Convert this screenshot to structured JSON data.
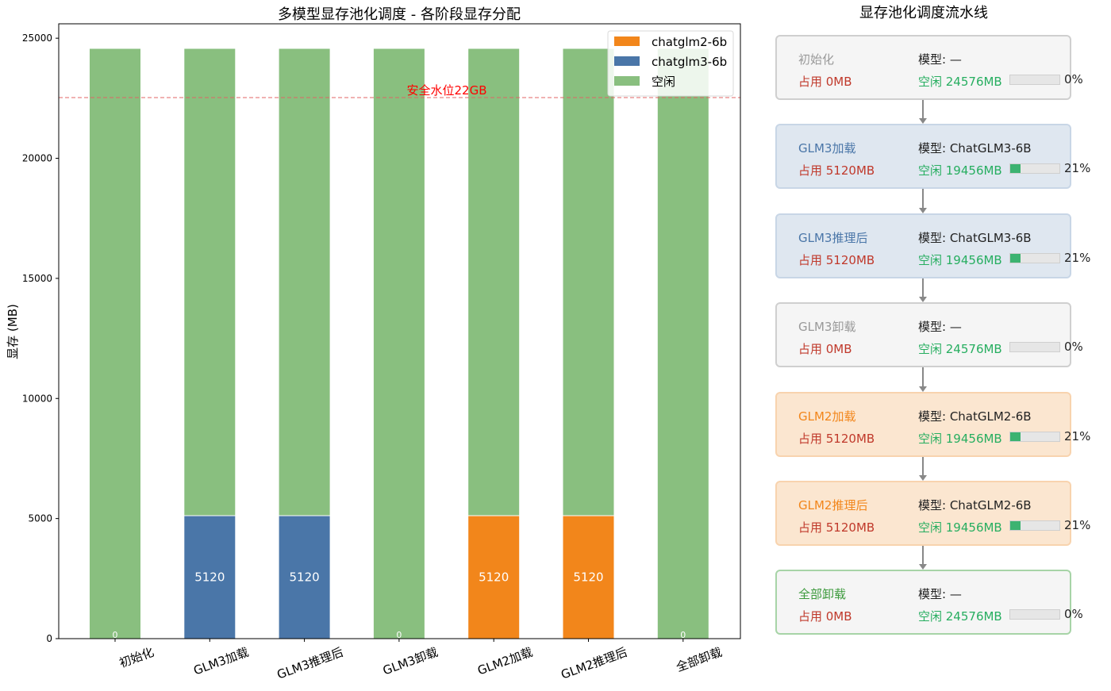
{
  "chart_data": {
    "type": "bar",
    "stacked": true,
    "title": "多模型显存池化调度 - 各阶段显存分配",
    "xlabel": "",
    "ylabel": "显存 (MB)",
    "ylim": [
      0,
      25600
    ],
    "yticks": [
      0,
      5000,
      10000,
      15000,
      20000,
      25000
    ],
    "categories": [
      "初始化",
      "GLM3加载",
      "GLM3推理后",
      "GLM3卸载",
      "GLM2加载",
      "GLM2推理后",
      "全部卸载"
    ],
    "series": [
      {
        "name": "chatglm2-6b",
        "color": "#f2861b",
        "values": [
          0,
          0,
          0,
          0,
          5120,
          5120,
          0
        ]
      },
      {
        "name": "chatglm3-6b",
        "color": "#4a76a8",
        "values": [
          0,
          5120,
          5120,
          0,
          0,
          0,
          0
        ]
      },
      {
        "name": "空闲",
        "color": "#89bf7f",
        "values": [
          24576,
          19456,
          19456,
          24576,
          19456,
          19456,
          24576
        ]
      }
    ],
    "bar_labels": [
      "0",
      "5120",
      "5120",
      "0",
      "5120",
      "5120",
      "0"
    ],
    "reference_line": {
      "value": 22528,
      "label": "安全水位22GB",
      "color": "#e06666"
    },
    "legend": "top-right",
    "grid": false
  },
  "pipeline": {
    "title": "显存池化调度流水线",
    "stages": [
      {
        "name": "初始化",
        "model": "模型: —",
        "used": "占用 0MB",
        "free": "空闲 24576MB",
        "usage_pct": 0,
        "pct_label": "0%",
        "style": "init"
      },
      {
        "name": "GLM3加载",
        "model": "模型: ChatGLM3-6B",
        "used": "占用 5120MB",
        "free": "空闲 19456MB",
        "usage_pct": 21,
        "pct_label": "21%",
        "style": "glm3"
      },
      {
        "name": "GLM3推理后",
        "model": "模型: ChatGLM3-6B",
        "used": "占用 5120MB",
        "free": "空闲 19456MB",
        "usage_pct": 21,
        "pct_label": "21%",
        "style": "glm3"
      },
      {
        "name": "GLM3卸载",
        "model": "模型: —",
        "used": "占用 0MB",
        "free": "空闲 24576MB",
        "usage_pct": 0,
        "pct_label": "0%",
        "style": "gray"
      },
      {
        "name": "GLM2加载",
        "model": "模型: ChatGLM2-6B",
        "used": "占用 5120MB",
        "free": "空闲 19456MB",
        "usage_pct": 21,
        "pct_label": "21%",
        "style": "glm2"
      },
      {
        "name": "GLM2推理后",
        "model": "模型: ChatGLM2-6B",
        "used": "占用 5120MB",
        "free": "空闲 19456MB",
        "usage_pct": 21,
        "pct_label": "21%",
        "style": "glm2"
      },
      {
        "name": "全部卸载",
        "model": "模型: —",
        "used": "占用 0MB",
        "free": "空闲 24576MB",
        "usage_pct": 0,
        "pct_label": "0%",
        "style": "done"
      }
    ]
  }
}
